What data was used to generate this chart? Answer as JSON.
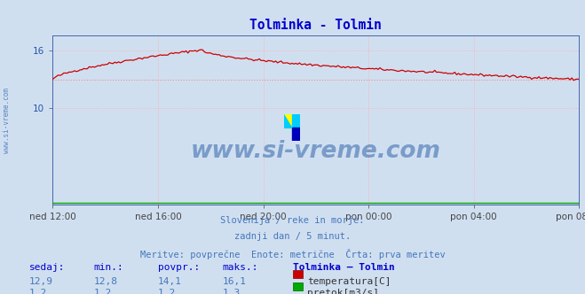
{
  "title": "Tolminka - Tolmin",
  "title_color": "#0000cc",
  "bg_color": "#d0dff0",
  "plot_bg_color": "#d0dff0",
  "grid_color": "#ffaaaa",
  "x_tick_labels": [
    "ned 12:00",
    "ned 16:00",
    "ned 20:00",
    "pon 00:00",
    "pon 04:00",
    "pon 08:00"
  ],
  "x_tick_positions": [
    0,
    48,
    96,
    144,
    192,
    240
  ],
  "n_points": 289,
  "ylim": [
    0,
    17.6
  ],
  "yticks": [
    10,
    16
  ],
  "temp_color": "#cc0000",
  "flow_color": "#00aa00",
  "avg_line_color": "#ff8888",
  "avg_temp": 13.0,
  "watermark": "www.si-vreme.com",
  "watermark_color": "#3366aa",
  "footnote1": "Slovenija / reke in morje.",
  "footnote2": "zadnji dan / 5 minut.",
  "footnote3": "Meritve: povprečne  Enote: metrične  Črta: prva meritev",
  "footnote_color": "#4477bb",
  "table_headers": [
    "sedaj:",
    "min.:",
    "povpr.:",
    "maks.:",
    "Tolminka – Tolmin"
  ],
  "table_row1": [
    "12,9",
    "12,8",
    "14,1",
    "16,1"
  ],
  "table_row2": [
    "1,2",
    "1,2",
    "1,2",
    "1,3"
  ],
  "label_temp": "temperatura[C]",
  "label_flow": "pretok[m3/s]",
  "left_label": "www.si-vreme.com",
  "left_label_color": "#4477bb",
  "spine_color": "#8899aa"
}
